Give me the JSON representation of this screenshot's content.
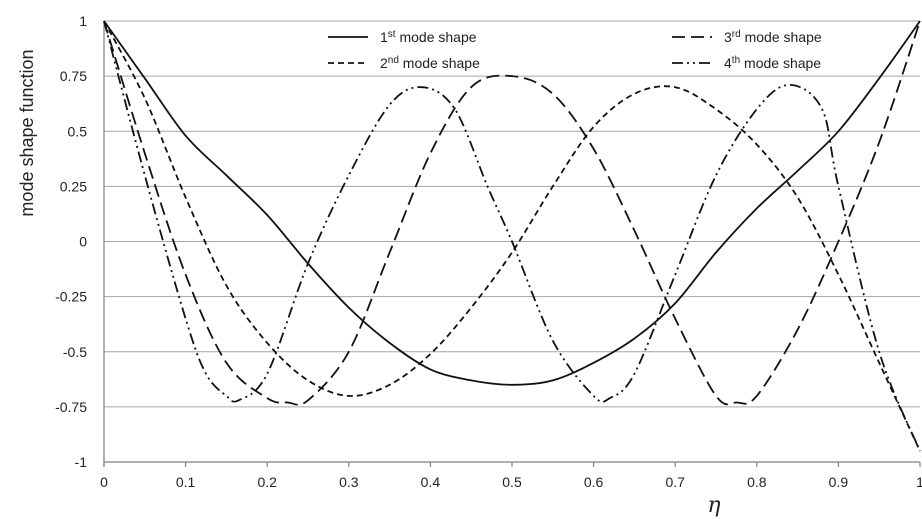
{
  "chart_data": {
    "type": "line",
    "title": "",
    "xlabel": "η",
    "ylabel": "mode shape function",
    "xlim": [
      0,
      1
    ],
    "ylim": [
      -1,
      1
    ],
    "xticks": [
      "0",
      "0.1",
      "0.2",
      "0.3",
      "0.4",
      "0.5",
      "0.6",
      "0.7",
      "0.8",
      "0.9",
      "1"
    ],
    "yticks": [
      "1",
      "0.75",
      "0.5",
      "0.25",
      "0",
      "-0.25",
      "-0.5",
      "-0.75",
      "-1"
    ],
    "grid": "horizontal",
    "legend_position": "top",
    "series": [
      {
        "name": "1st mode shape",
        "name_base": "1",
        "name_sup": "st",
        "name_rest": " mode shape",
        "dash": "solid",
        "x": [
          0,
          0.05,
          0.1,
          0.15,
          0.2,
          0.25,
          0.3,
          0.35,
          0.4,
          0.45,
          0.5,
          0.55,
          0.6,
          0.65,
          0.7,
          0.75,
          0.8,
          0.85,
          0.9,
          0.95,
          1.0
        ],
        "y": [
          1.0,
          0.74,
          0.48,
          0.3,
          0.12,
          -0.1,
          -0.3,
          -0.46,
          -0.58,
          -0.63,
          -0.65,
          -0.63,
          -0.55,
          -0.44,
          -0.28,
          -0.05,
          0.15,
          0.32,
          0.5,
          0.74,
          1.0
        ]
      },
      {
        "name": "2nd mode shape",
        "name_base": "2",
        "name_sup": "nd",
        "name_rest": " mode shape",
        "dash": "short-dash",
        "x": [
          0,
          0.05,
          0.1,
          0.15,
          0.2,
          0.25,
          0.3,
          0.35,
          0.4,
          0.45,
          0.5,
          0.55,
          0.6,
          0.65,
          0.7,
          0.75,
          0.8,
          0.85,
          0.9,
          0.95,
          1.0
        ],
        "y": [
          1.0,
          0.65,
          0.2,
          -0.2,
          -0.46,
          -0.63,
          -0.7,
          -0.65,
          -0.51,
          -0.3,
          -0.05,
          0.25,
          0.52,
          0.67,
          0.7,
          0.6,
          0.44,
          0.2,
          -0.15,
          -0.55,
          -0.95
        ]
      },
      {
        "name": "3rd mode shape",
        "name_base": "3",
        "name_sup": "rd",
        "name_rest": " mode shape",
        "dash": "long-dash",
        "x": [
          0,
          0.05,
          0.1,
          0.15,
          0.2,
          0.225,
          0.25,
          0.3,
          0.35,
          0.4,
          0.45,
          0.5,
          0.55,
          0.6,
          0.65,
          0.7,
          0.75,
          0.775,
          0.8,
          0.85,
          0.9,
          0.95,
          1.0
        ],
        "y": [
          1.0,
          0.4,
          -0.15,
          -0.55,
          -0.71,
          -0.73,
          -0.72,
          -0.5,
          -0.05,
          0.4,
          0.7,
          0.75,
          0.67,
          0.42,
          0.05,
          -0.35,
          -0.7,
          -0.73,
          -0.7,
          -0.4,
          0.0,
          0.45,
          1.0
        ]
      },
      {
        "name": "4th mode shape",
        "name_base": "4",
        "name_sup": "th",
        "name_rest": " mode shape",
        "dash": "dash-dot-dot",
        "x": [
          0,
          0.05,
          0.1,
          0.125,
          0.15,
          0.165,
          0.2,
          0.25,
          0.3,
          0.35,
          0.39,
          0.43,
          0.47,
          0.5,
          0.55,
          0.6,
          0.62,
          0.65,
          0.7,
          0.75,
          0.8,
          0.84,
          0.88,
          0.9,
          0.95,
          1.0
        ],
        "y": [
          1.0,
          0.3,
          -0.35,
          -0.6,
          -0.7,
          -0.72,
          -0.6,
          -0.1,
          0.3,
          0.62,
          0.7,
          0.6,
          0.25,
          0.0,
          -0.45,
          -0.7,
          -0.71,
          -0.6,
          -0.15,
          0.3,
          0.6,
          0.71,
          0.6,
          0.25,
          -0.5,
          -0.95
        ]
      }
    ]
  }
}
